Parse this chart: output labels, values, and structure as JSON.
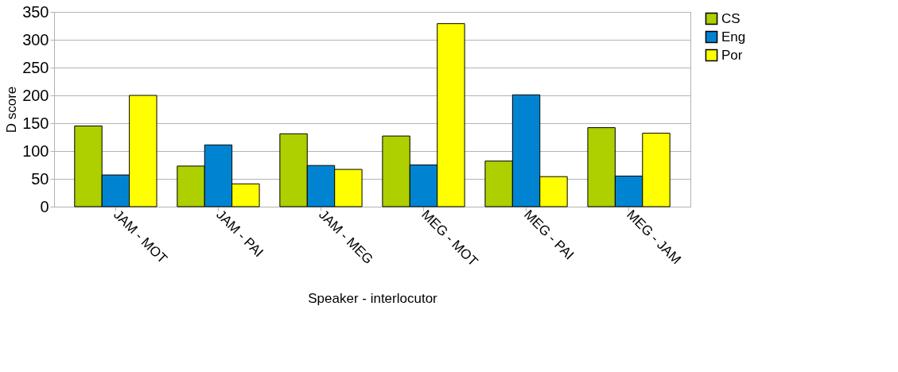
{
  "chart_data": {
    "type": "bar",
    "xlabel": "Speaker - interlocutor",
    "ylabel": "D score",
    "categories": [
      "JAM - MOT",
      "JAM - PAI",
      "JAM - MEG",
      "MEG - MOT",
      "MEG - PAI",
      "MEG - JAM"
    ],
    "series": [
      {
        "name": "CS",
        "color": "#aecf00",
        "values": [
          145,
          73,
          131,
          127,
          82,
          142
        ]
      },
      {
        "name": "Eng",
        "color": "#0084d1",
        "values": [
          57,
          111,
          74,
          75,
          201,
          55
        ]
      },
      {
        "name": "Por",
        "color": "#ffff00",
        "values": [
          200,
          41,
          67,
          329,
          54,
          132
        ]
      }
    ],
    "ylim": [
      0,
      350
    ],
    "yticks": [
      0,
      50,
      100,
      150,
      200,
      250,
      300,
      350
    ],
    "grid": "y",
    "legend": "right"
  }
}
